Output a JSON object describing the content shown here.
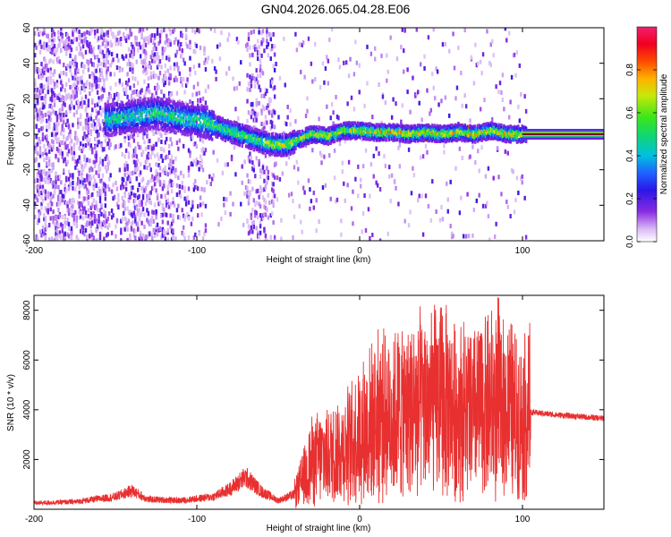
{
  "title": "GN04.2026.065.04.28.E06",
  "chart_data": [
    {
      "type": "heatmap",
      "xlabel": "Height of straight line (km)",
      "ylabel": "Frequency (Hz)",
      "xlim": [
        -200,
        150
      ],
      "ylim": [
        -60,
        60
      ],
      "xticks": [
        -200,
        -100,
        0,
        100
      ],
      "yticks": [
        -60,
        -40,
        -20,
        0,
        20,
        40,
        60
      ],
      "colorbar": {
        "label": "Normalized spectral amplitude",
        "range": [
          0,
          1
        ],
        "ticks": [
          0.0,
          0.2,
          0.4,
          0.6,
          0.8
        ]
      },
      "ridge": {
        "description": "frequency of peak spectral amplitude vs height",
        "x": [
          -155,
          -140,
          -125,
          -110,
          -95,
          -85,
          -75,
          -65,
          -58,
          -52,
          -45,
          -38,
          -30,
          -20,
          -10,
          0,
          10,
          20,
          30,
          40,
          50,
          60,
          70,
          80,
          90,
          100,
          150
        ],
        "y": [
          8,
          10,
          12,
          9,
          7,
          3,
          0,
          -3,
          -5,
          -6,
          -6,
          -3,
          0,
          -1,
          2,
          2,
          1,
          1,
          0,
          1,
          0,
          1,
          0,
          2,
          0,
          0,
          0
        ]
      }
    },
    {
      "type": "line",
      "xlabel": "Height of straight line (km)",
      "ylabel": "SNR (10 * v/v)",
      "xlim": [
        -200,
        150
      ],
      "ylim": [
        0,
        8600
      ],
      "xticks": [
        -200,
        -100,
        0,
        100
      ],
      "yticks": [
        2000,
        4000,
        6000,
        8000
      ],
      "series": [
        {
          "name": "SNR",
          "color": "#e83030",
          "x": [
            -200,
            -175,
            -150,
            -140,
            -130,
            -110,
            -90,
            -80,
            -70,
            -60,
            -50,
            -40,
            -30,
            -20,
            -10,
            0,
            10,
            20,
            30,
            40,
            50,
            60,
            70,
            80,
            90,
            100,
            105,
            120,
            150
          ],
          "y": [
            250,
            300,
            500,
            750,
            400,
            350,
            500,
            800,
            1300,
            700,
            350,
            600,
            1900,
            2200,
            2400,
            3000,
            3700,
            3800,
            4000,
            4200,
            4300,
            4000,
            3800,
            4200,
            4000,
            3700,
            3900,
            3800,
            3650
          ],
          "peak": {
            "x": 85,
            "y": 8500
          }
        }
      ]
    }
  ]
}
